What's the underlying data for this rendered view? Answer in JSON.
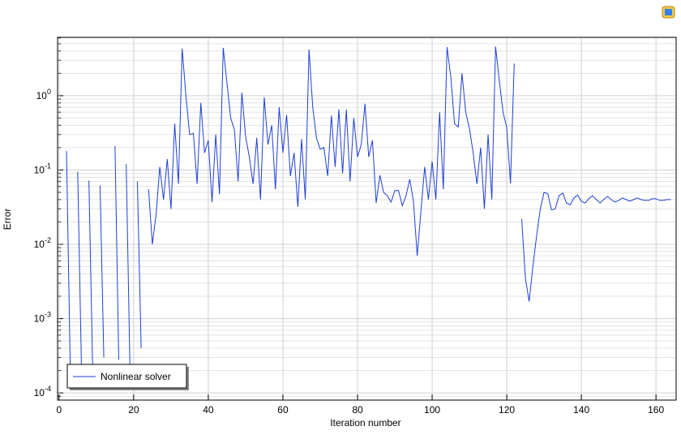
{
  "chart_data": {
    "type": "line",
    "x_label": "Iteration number",
    "y_label": "Error",
    "x": [
      1,
      2,
      3,
      4,
      5,
      6,
      7,
      8,
      9,
      10,
      11,
      12,
      13,
      14,
      15,
      16,
      17,
      18,
      19,
      20,
      21,
      22,
      23,
      24,
      25,
      26,
      27,
      28,
      29,
      30,
      31,
      32,
      33,
      34,
      35,
      36,
      37,
      38,
      39,
      40,
      41,
      42,
      43,
      44,
      45,
      46,
      47,
      48,
      49,
      50,
      51,
      52,
      53,
      54,
      55,
      56,
      57,
      58,
      59,
      60,
      61,
      62,
      63,
      64,
      65,
      66,
      67,
      68,
      69,
      70,
      71,
      72,
      73,
      74,
      75,
      76,
      77,
      78,
      79,
      80,
      81,
      82,
      83,
      84,
      85,
      86,
      87,
      88,
      89,
      90,
      91,
      92,
      93,
      94,
      95,
      96,
      97,
      98,
      99,
      100,
      101,
      102,
      103,
      104,
      105,
      106,
      107,
      108,
      109,
      110,
      111,
      112,
      113,
      114,
      115,
      116,
      117,
      118,
      119,
      120,
      121,
      122,
      123,
      124,
      125,
      126,
      127,
      128,
      129,
      130,
      131,
      132,
      133,
      134,
      135,
      136,
      137,
      138,
      139,
      140,
      141,
      142,
      143,
      144,
      145,
      146,
      147,
      148,
      149,
      150,
      151,
      152,
      153,
      154,
      155,
      156,
      157,
      158,
      159,
      160,
      161,
      162,
      163,
      164
    ],
    "series": [
      {
        "name": "Nonlinear solver",
        "color": "#1f3fd6",
        "values": [
          null,
          0.18,
          0.00022,
          null,
          0.095,
          0.00022,
          null,
          0.072,
          0.00022,
          null,
          0.062,
          0.0003,
          null,
          null,
          0.21,
          0.00028,
          null,
          0.12,
          0.00022,
          null,
          0.07,
          0.0004,
          null,
          0.055,
          0.01,
          0.025,
          0.11,
          0.04,
          0.14,
          0.03,
          0.42,
          0.065,
          4.3,
          1.0,
          0.3,
          0.31,
          0.065,
          0.8,
          0.17,
          0.25,
          0.037,
          0.3,
          0.047,
          4.4,
          1.5,
          0.5,
          0.35,
          0.07,
          1.1,
          0.28,
          0.15,
          0.065,
          0.27,
          0.04,
          0.95,
          0.22,
          0.4,
          0.055,
          0.7,
          0.17,
          0.55,
          0.083,
          0.17,
          0.032,
          0.26,
          0.04,
          4.2,
          0.7,
          0.27,
          0.19,
          0.2,
          0.083,
          0.54,
          0.11,
          0.65,
          0.09,
          0.65,
          0.07,
          0.5,
          0.15,
          0.22,
          0.78,
          0.15,
          0.25,
          0.036,
          0.085,
          0.05,
          0.045,
          0.037,
          0.053,
          0.053,
          0.033,
          0.045,
          0.075,
          0.038,
          0.007,
          0.028,
          0.11,
          0.04,
          0.13,
          0.04,
          0.6,
          0.055,
          4.5,
          1.8,
          0.42,
          0.38,
          2.0,
          0.6,
          0.36,
          0.17,
          0.065,
          0.2,
          0.03,
          0.3,
          0.04,
          4.6,
          1.6,
          0.6,
          0.37,
          0.066,
          2.7,
          null,
          0.022,
          0.0035,
          0.0017,
          0.005,
          0.013,
          0.03,
          0.05,
          0.048,
          0.029,
          0.03,
          0.045,
          0.049,
          0.036,
          0.034,
          0.042,
          0.046,
          0.038,
          0.036,
          0.041,
          0.045,
          0.04,
          0.036,
          0.04,
          0.044,
          0.04,
          0.037,
          0.039,
          0.042,
          0.04,
          0.038,
          0.04,
          0.042,
          0.04,
          0.039,
          0.039,
          0.041,
          0.041,
          0.039,
          0.039,
          0.04,
          0.04
        ]
      }
    ],
    "xlim": [
      -0.4,
      165.4
    ],
    "xticks": [
      0,
      20,
      40,
      60,
      80,
      100,
      120,
      140,
      160
    ],
    "ylim": [
      8e-05,
      6.1
    ],
    "log_y": true,
    "yticks": [
      {
        "value": 0.0001,
        "label": "10",
        "exponent": "-4"
      },
      {
        "value": 0.001,
        "label": "10",
        "exponent": "-3"
      },
      {
        "value": 0.01,
        "label": "10",
        "exponent": "-2"
      },
      {
        "value": 0.1,
        "label": "10",
        "exponent": "-1"
      },
      {
        "value": 1,
        "label": "10",
        "exponent": "0"
      }
    ],
    "grid": true,
    "minor_grid": true,
    "legend": "lower left"
  }
}
